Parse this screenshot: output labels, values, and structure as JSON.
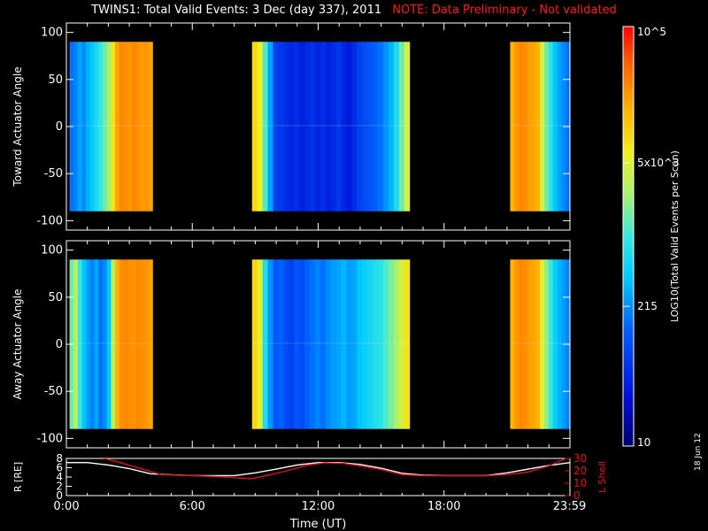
{
  "title": "TWINS1: Total Valid Events:  3 Dec (day 337), 2011",
  "note": "NOTE: Data Preliminary - Not validated",
  "date_stamp": "18 Jun 12",
  "colors": {
    "background": "#000000",
    "axis": "#ffffff",
    "note": "#ff1a1a",
    "l_shell_line": "#e01010",
    "r_line": "#ffffff"
  },
  "chart_data": [
    {
      "type": "heatmap",
      "name": "toward",
      "ylabel": "Toward Actuator Angle",
      "ylim": [
        -110,
        110
      ],
      "yticks": [
        100,
        50,
        0,
        -50,
        -100
      ],
      "xlim": [
        0,
        24
      ],
      "data_y_range": [
        -90,
        90
      ],
      "intervals": [
        {
          "start": 0.15,
          "end": 4.1,
          "values": [
            0.3,
            0.32,
            0.36,
            0.33,
            0.38,
            0.41,
            0.45,
            0.5,
            0.55,
            0.6,
            0.72,
            0.82,
            0.86,
            0.85,
            0.84,
            0.86,
            0.85,
            0.83,
            0.84,
            0.82
          ]
        },
        {
          "start": 8.85,
          "end": 16.35,
          "values": [
            0.74,
            0.7,
            0.52,
            0.36,
            0.22,
            0.2,
            0.18,
            0.16,
            0.18,
            0.15,
            0.17,
            0.19,
            0.16,
            0.18,
            0.15,
            0.17,
            0.2,
            0.16,
            0.14,
            0.18,
            0.22,
            0.24,
            0.26,
            0.28,
            0.3,
            0.34,
            0.38,
            0.45,
            0.55,
            0.66
          ]
        },
        {
          "start": 21.15,
          "end": 24.0,
          "values": [
            0.8,
            0.84,
            0.86,
            0.85,
            0.83,
            0.82,
            0.8,
            0.66,
            0.55,
            0.48,
            0.4,
            0.36,
            0.33,
            0.3
          ]
        }
      ]
    },
    {
      "type": "heatmap",
      "name": "away",
      "ylabel": "Away Actuator Angle",
      "ylim": [
        -110,
        110
      ],
      "yticks": [
        100,
        50,
        0,
        -50,
        -100
      ],
      "xlim": [
        0,
        24
      ],
      "data_y_range": [
        -90,
        90
      ],
      "intervals": [
        {
          "start": 0.15,
          "end": 4.1,
          "values": [
            0.55,
            0.62,
            0.5,
            0.4,
            0.35,
            0.32,
            0.36,
            0.3,
            0.33,
            0.4,
            0.62,
            0.8,
            0.85,
            0.86,
            0.85,
            0.84,
            0.86,
            0.85,
            0.84,
            0.82
          ]
        },
        {
          "start": 8.85,
          "end": 16.35,
          "values": [
            0.74,
            0.68,
            0.46,
            0.34,
            0.26,
            0.28,
            0.24,
            0.22,
            0.26,
            0.24,
            0.28,
            0.3,
            0.32,
            0.3,
            0.33,
            0.35,
            0.36,
            0.38,
            0.35,
            0.36,
            0.4,
            0.42,
            0.44,
            0.46,
            0.48,
            0.52,
            0.56,
            0.6,
            0.66,
            0.72
          ]
        },
        {
          "start": 21.15,
          "end": 24.0,
          "values": [
            0.8,
            0.84,
            0.86,
            0.85,
            0.83,
            0.82,
            0.8,
            0.68,
            0.58,
            0.5,
            0.42,
            0.38,
            0.35,
            0.32
          ]
        }
      ]
    },
    {
      "type": "line",
      "name": "orbit",
      "title": "",
      "xlabel": "Time (UT)",
      "xlim": [
        0,
        24
      ],
      "xticks": [
        {
          "value": 0,
          "label": "0:00"
        },
        {
          "value": 6,
          "label": "6:00"
        },
        {
          "value": 12,
          "label": "12:00"
        },
        {
          "value": 18,
          "label": "18:00"
        },
        {
          "value": 23.98,
          "label": "23:59"
        }
      ],
      "ylabel_left": "R [RE]",
      "ylim_left": [
        0,
        8
      ],
      "yticks_left": [
        0,
        2,
        4,
        6,
        8
      ],
      "ylabel_right": "L Shell",
      "ylim_right": [
        0,
        30
      ],
      "yticks_right": [
        0,
        10,
        20,
        30
      ],
      "series": [
        {
          "name": "R",
          "axis": "left",
          "x": [
            0,
            1,
            2,
            3,
            4,
            5,
            6,
            7,
            8,
            9,
            10,
            11,
            12,
            13,
            14,
            15,
            16,
            17,
            18,
            19,
            20,
            21,
            22,
            23,
            24
          ],
          "values": [
            7.1,
            7.1,
            6.6,
            5.8,
            4.7,
            4.5,
            4.3,
            4.3,
            4.3,
            4.9,
            5.7,
            6.6,
            7.1,
            7.1,
            6.7,
            5.9,
            4.8,
            4.4,
            4.3,
            4.3,
            4.3,
            4.9,
            5.7,
            6.5,
            7.1
          ]
        },
        {
          "name": "L Shell",
          "axis": "right",
          "x": [
            1.8,
            2.5,
            3.5,
            4.5,
            6,
            7,
            8,
            8.8,
            9.5,
            10.5,
            11.5,
            12.3,
            13.2,
            14,
            15,
            16,
            17,
            18,
            19,
            20,
            21,
            22,
            23,
            23.8
          ],
          "values": [
            30,
            27,
            22,
            17,
            16,
            15.5,
            14.5,
            13.5,
            16,
            20,
            24.5,
            26.5,
            26,
            24,
            21,
            17,
            16,
            16,
            16,
            16,
            17,
            19,
            24,
            30
          ]
        }
      ]
    }
  ],
  "colorbar": {
    "label": "LOG10(Total Valid Events per Scan)",
    "ticks": [
      {
        "label": "10",
        "value": 10
      },
      {
        "label": "215",
        "value": 215
      },
      {
        "label": "5x10^3",
        "value": 5000
      },
      {
        "label": "10^5",
        "value": 100000
      }
    ]
  }
}
